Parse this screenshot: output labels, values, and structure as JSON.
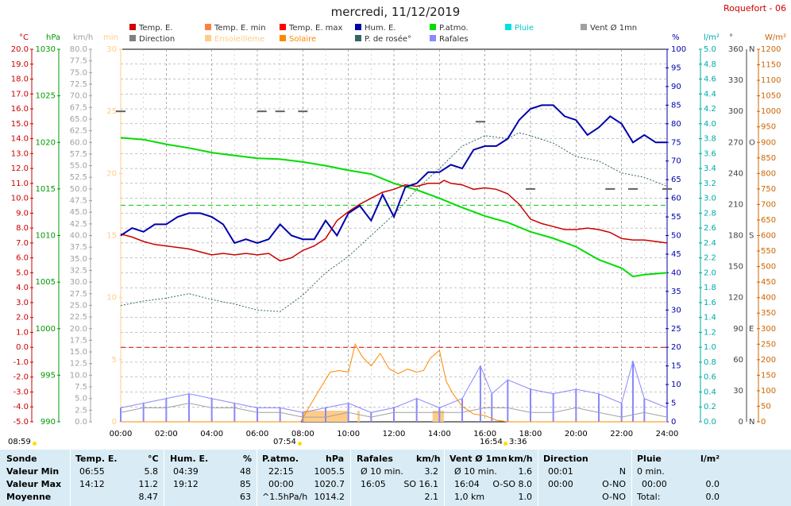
{
  "title": "mercredi, 11/12/2019",
  "station": "Roquefort - 06",
  "units": {
    "temp": "°C",
    "press": "hPa",
    "wind": "km/h",
    "sun": "min",
    "hum": "%",
    "rain": "l/m²",
    "dir": "°",
    "solar": "W/m²"
  },
  "legend": [
    {
      "label": "Temp. E.",
      "color": "#cc0000"
    },
    {
      "label": "Temp. E. min",
      "color": "#ff7f40"
    },
    {
      "label": "Temp. E. max",
      "color": "#ff0000"
    },
    {
      "label": "Hum. E.",
      "color": "#0000aa"
    },
    {
      "label": "P.atmo.",
      "color": "#00dd00"
    },
    {
      "label": "Pluie",
      "color": "#00e0e0"
    },
    {
      "label": "Vent Ø 1mn",
      "color": "#a0a0a0"
    },
    {
      "label": "Direction",
      "color": "#808080"
    },
    {
      "label": "Ensoleilleme",
      "color": "#ffcc88"
    },
    {
      "label": "Solaire",
      "color": "#ff8800"
    },
    {
      "label": "P. de rosée°",
      "color": "#336666"
    },
    {
      "label": "Rafales",
      "color": "#8888ff"
    }
  ],
  "axes": {
    "temp": {
      "min": -5,
      "max": 20,
      "step": 1,
      "color": "#cc0000"
    },
    "press": {
      "min": 990,
      "max": 1030,
      "step": 5,
      "color": "#009900"
    },
    "wind": {
      "min": 0,
      "max": 80,
      "step": 2.5,
      "color": "#a0a0a0"
    },
    "sun": {
      "min": 0,
      "max": 30,
      "step": 5,
      "color": "#ffcc88"
    },
    "hum": {
      "min": 0,
      "max": 100,
      "step": 5,
      "color": "#0000aa"
    },
    "rain": {
      "min": 0,
      "max": 5,
      "step": 0.2,
      "color": "#00aaaa"
    },
    "dir": {
      "ticks": [
        [
          "0",
          "N"
        ],
        [
          "30",
          ""
        ],
        [
          "60",
          ""
        ],
        [
          "90",
          "E"
        ],
        [
          "120",
          ""
        ],
        [
          "150",
          ""
        ],
        [
          "180",
          "S"
        ],
        [
          "210",
          ""
        ],
        [
          "240",
          ""
        ],
        [
          "270",
          "O"
        ],
        [
          "300",
          ""
        ],
        [
          "330",
          ""
        ],
        [
          "360",
          "N"
        ]
      ],
      "color": "#404040"
    },
    "solar": {
      "min": 0,
      "max": 1200,
      "step": 50,
      "color": "#cc6600"
    },
    "time": [
      "00:00",
      "02:00",
      "04:00",
      "06:00",
      "08:00",
      "10:00",
      "12:00",
      "14:00",
      "16:00",
      "18:00",
      "20:00",
      "22:00",
      "24:00"
    ]
  },
  "events": {
    "sunrise": "08:59",
    "daylight": "07:54",
    "sunset": "16:54",
    "daylength": "3:36"
  },
  "chart_data": {
    "type": "line",
    "x_unit": "hour",
    "series": [
      {
        "name": "Temp. E.",
        "unit": "°C",
        "points": [
          [
            0,
            7.6
          ],
          [
            0.5,
            7.4
          ],
          [
            1,
            7.1
          ],
          [
            1.5,
            6.9
          ],
          [
            2,
            6.8
          ],
          [
            2.5,
            6.7
          ],
          [
            3,
            6.6
          ],
          [
            3.5,
            6.4
          ],
          [
            4,
            6.2
          ],
          [
            4.5,
            6.3
          ],
          [
            5,
            6.2
          ],
          [
            5.5,
            6.3
          ],
          [
            6,
            6.2
          ],
          [
            6.5,
            6.3
          ],
          [
            7,
            5.8
          ],
          [
            7.5,
            6.0
          ],
          [
            8,
            6.5
          ],
          [
            8.5,
            6.8
          ],
          [
            9,
            7.3
          ],
          [
            9.5,
            8.5
          ],
          [
            10,
            9.1
          ],
          [
            10.5,
            9.6
          ],
          [
            11,
            10.0
          ],
          [
            11.5,
            10.4
          ],
          [
            12,
            10.6
          ],
          [
            12.5,
            10.9
          ],
          [
            13,
            10.8
          ],
          [
            13.5,
            11.0
          ],
          [
            14,
            11.0
          ],
          [
            14.2,
            11.2
          ],
          [
            14.5,
            11.0
          ],
          [
            15,
            10.9
          ],
          [
            15.5,
            10.6
          ],
          [
            16,
            10.7
          ],
          [
            16.5,
            10.6
          ],
          [
            17,
            10.3
          ],
          [
            17.5,
            9.6
          ],
          [
            18,
            8.6
          ],
          [
            18.5,
            8.3
          ],
          [
            19,
            8.1
          ],
          [
            19.5,
            7.9
          ],
          [
            20,
            7.9
          ],
          [
            20.5,
            8.0
          ],
          [
            21,
            7.9
          ],
          [
            21.5,
            7.7
          ],
          [
            22,
            7.3
          ],
          [
            22.5,
            7.2
          ],
          [
            23,
            7.2
          ],
          [
            23.5,
            7.1
          ],
          [
            24,
            7.0
          ]
        ]
      },
      {
        "name": "Hum. E.",
        "unit": "%",
        "points": [
          [
            0,
            50
          ],
          [
            0.5,
            52
          ],
          [
            1,
            51
          ],
          [
            1.5,
            53
          ],
          [
            2,
            53
          ],
          [
            2.5,
            55
          ],
          [
            3,
            56
          ],
          [
            3.5,
            56
          ],
          [
            4,
            55
          ],
          [
            4.5,
            53
          ],
          [
            5,
            48
          ],
          [
            5.5,
            49
          ],
          [
            6,
            48
          ],
          [
            6.5,
            49
          ],
          [
            7,
            53
          ],
          [
            7.5,
            50
          ],
          [
            8,
            49
          ],
          [
            8.5,
            49
          ],
          [
            9,
            54
          ],
          [
            9.5,
            50
          ],
          [
            10,
            56
          ],
          [
            10.5,
            58
          ],
          [
            11,
            54
          ],
          [
            11.5,
            61
          ],
          [
            12,
            55
          ],
          [
            12.5,
            63
          ],
          [
            13,
            64
          ],
          [
            13.5,
            67
          ],
          [
            14,
            67
          ],
          [
            14.5,
            69
          ],
          [
            15,
            68
          ],
          [
            15.5,
            73
          ],
          [
            16,
            74
          ],
          [
            16.5,
            74
          ],
          [
            17,
            76
          ],
          [
            17.5,
            81
          ],
          [
            18,
            84
          ],
          [
            18.5,
            85
          ],
          [
            19,
            85
          ],
          [
            19.5,
            82
          ],
          [
            20,
            81
          ],
          [
            20.5,
            77
          ],
          [
            21,
            79
          ],
          [
            21.5,
            82
          ],
          [
            22,
            80
          ],
          [
            22.5,
            75
          ],
          [
            23,
            77
          ],
          [
            23.5,
            75
          ],
          [
            24,
            75
          ]
        ]
      },
      {
        "name": "P.atmo.",
        "unit": "hPa",
        "points": [
          [
            0,
            1020.5
          ],
          [
            1,
            1020.3
          ],
          [
            2,
            1019.8
          ],
          [
            3,
            1019.4
          ],
          [
            4,
            1018.9
          ],
          [
            5,
            1018.6
          ],
          [
            6,
            1018.3
          ],
          [
            7,
            1018.2
          ],
          [
            8,
            1017.9
          ],
          [
            9,
            1017.5
          ],
          [
            10,
            1017.0
          ],
          [
            11,
            1016.6
          ],
          [
            12,
            1015.6
          ],
          [
            13,
            1014.9
          ],
          [
            14,
            1014.0
          ],
          [
            15,
            1013.0
          ],
          [
            16,
            1012.1
          ],
          [
            17,
            1011.4
          ],
          [
            18,
            1010.4
          ],
          [
            19,
            1009.7
          ],
          [
            20,
            1008.8
          ],
          [
            21,
            1007.4
          ],
          [
            22,
            1006.5
          ],
          [
            22.5,
            1005.6
          ],
          [
            23,
            1005.8
          ],
          [
            24,
            1006.0
          ]
        ]
      },
      {
        "name": "P. de rosée°",
        "unit": "°C",
        "points": [
          [
            0,
            2.8
          ],
          [
            1,
            3.1
          ],
          [
            2,
            3.3
          ],
          [
            3,
            3.6
          ],
          [
            4,
            3.2
          ],
          [
            5,
            2.9
          ],
          [
            6,
            2.5
          ],
          [
            7,
            2.4
          ],
          [
            8,
            3.5
          ],
          [
            9,
            5.0
          ],
          [
            10,
            6.1
          ],
          [
            11,
            7.5
          ],
          [
            12,
            8.9
          ],
          [
            13,
            10.6
          ],
          [
            14,
            12.0
          ],
          [
            15,
            13.5
          ],
          [
            16,
            14.2
          ],
          [
            17,
            14.0
          ],
          [
            17.5,
            14.4
          ],
          [
            18,
            14.2
          ],
          [
            19,
            13.7
          ],
          [
            20,
            12.8
          ],
          [
            21,
            12.5
          ],
          [
            22,
            11.7
          ],
          [
            23,
            11.4
          ],
          [
            24,
            10.8
          ]
        ]
      },
      {
        "name": "Solaire",
        "unit": "W/m²",
        "points": [
          [
            0,
            0
          ],
          [
            7.9,
            0
          ],
          [
            8.3,
            50
          ],
          [
            8.7,
            100
          ],
          [
            9.2,
            160
          ],
          [
            9.6,
            165
          ],
          [
            10,
            160
          ],
          [
            10.3,
            250
          ],
          [
            10.6,
            210
          ],
          [
            11,
            180
          ],
          [
            11.4,
            220
          ],
          [
            11.8,
            170
          ],
          [
            12.2,
            155
          ],
          [
            12.6,
            170
          ],
          [
            13,
            160
          ],
          [
            13.3,
            165
          ],
          [
            13.6,
            205
          ],
          [
            14,
            230
          ],
          [
            14.3,
            130
          ],
          [
            14.6,
            90
          ],
          [
            15,
            50
          ],
          [
            15.5,
            25
          ],
          [
            16,
            20
          ],
          [
            16.5,
            5
          ],
          [
            17,
            0
          ],
          [
            24,
            0
          ]
        ]
      },
      {
        "name": "Rafales",
        "unit": "km/h",
        "points": [
          [
            0,
            3
          ],
          [
            1,
            4
          ],
          [
            2,
            5
          ],
          [
            3,
            6
          ],
          [
            4,
            5
          ],
          [
            5,
            4
          ],
          [
            6,
            3
          ],
          [
            7,
            3
          ],
          [
            8,
            2
          ],
          [
            9,
            3
          ],
          [
            10,
            4
          ],
          [
            11,
            2
          ],
          [
            12,
            3
          ],
          [
            13,
            5
          ],
          [
            14,
            3
          ],
          [
            15,
            5
          ],
          [
            15.8,
            12
          ],
          [
            16.3,
            6
          ],
          [
            17,
            9
          ],
          [
            18,
            7
          ],
          [
            19,
            6
          ],
          [
            20,
            7
          ],
          [
            21,
            6
          ],
          [
            22,
            4
          ],
          [
            22.5,
            13
          ],
          [
            23,
            5
          ],
          [
            24,
            3
          ]
        ]
      },
      {
        "name": "Vent Ø 1mn",
        "unit": "km/h",
        "points": [
          [
            0,
            2
          ],
          [
            1,
            3
          ],
          [
            2,
            3
          ],
          [
            3,
            4
          ],
          [
            4,
            3
          ],
          [
            5,
            3
          ],
          [
            6,
            2
          ],
          [
            7,
            2
          ],
          [
            8,
            1
          ],
          [
            9,
            1
          ],
          [
            10,
            2
          ],
          [
            11,
            1
          ],
          [
            12,
            2
          ],
          [
            13,
            2
          ],
          [
            14,
            2
          ],
          [
            15,
            2
          ],
          [
            16,
            3
          ],
          [
            17,
            3
          ],
          [
            18,
            2
          ],
          [
            19,
            2
          ],
          [
            20,
            3
          ],
          [
            21,
            2
          ],
          [
            22,
            1
          ],
          [
            23,
            2
          ],
          [
            24,
            1
          ]
        ]
      },
      {
        "name": "Direction",
        "unit": "°",
        "points": [
          [
            0,
            300
          ],
          [
            6.2,
            300
          ],
          [
            7.0,
            300
          ],
          [
            8.0,
            300
          ],
          [
            15.8,
            290
          ],
          [
            18,
            225
          ],
          [
            21.5,
            225
          ],
          [
            22.5,
            225
          ],
          [
            24,
            225
          ]
        ]
      },
      {
        "name": "Ensoleilleme",
        "unit": "min",
        "bars": [
          [
            8.0,
            10.0,
            1
          ],
          [
            10.4,
            10.5,
            1
          ],
          [
            13.7,
            14.2,
            1
          ]
        ]
      }
    ],
    "reference_lines": [
      {
        "axis": "temp",
        "value": 0,
        "color": "#cc0000"
      },
      {
        "axis": "press",
        "value": 1013.25,
        "color": "#00cc00"
      }
    ]
  },
  "stats": {
    "headers": {
      "sonde": "Sonde",
      "temp": "Temp. E.",
      "temp_u": "°C",
      "hum": "Hum. E.",
      "hum_u": "%",
      "press": "P.atmo.",
      "press_u": "hPa",
      "gust": "Rafales",
      "gust_u": "km/h",
      "wind": "Vent Ø 1mn",
      "wind_u": "km/h",
      "dir": "Direction",
      "rain": "Pluie",
      "rain_u": "l/m²"
    },
    "rows": [
      {
        "label": "Valeur Min",
        "t_time": "06:55",
        "t_val": "5.8",
        "h_time": "04:39",
        "h_val": "48",
        "p_time": "22:15",
        "p_val": "1005.5",
        "g_time": "Ø 10 min.",
        "g_val": "3.2",
        "w_time": "Ø 10 min.",
        "w_val": "1.6",
        "d_time": "00:01",
        "d_val": "N",
        "r_time": "0 min.",
        "r_val": ""
      },
      {
        "label": "Valeur Max",
        "t_time": "14:12",
        "t_val": "11.2",
        "h_time": "19:12",
        "h_val": "85",
        "p_time": "00:00",
        "p_val": "1020.7",
        "g_time": "16:05",
        "g_val": "SO 16.1",
        "w_time": "16:04",
        "w_val": "O-SO 8.0",
        "d_time": "00:00",
        "d_val": "O-NO",
        "r_time": "00:00",
        "r_val": "0.0"
      },
      {
        "label": "Moyenne",
        "t_time": "",
        "t_val": "8.47",
        "h_time": "",
        "h_val": "63",
        "p_time": "^1.5hPa/h",
        "p_val": "1014.2",
        "g_time": "",
        "g_val": "2.1",
        "w_time": "1,0 km",
        "w_val": "1.0",
        "d_time": "",
        "d_val": "O-NO",
        "r_time": "Total:",
        "r_val": "0.0"
      }
    ]
  }
}
